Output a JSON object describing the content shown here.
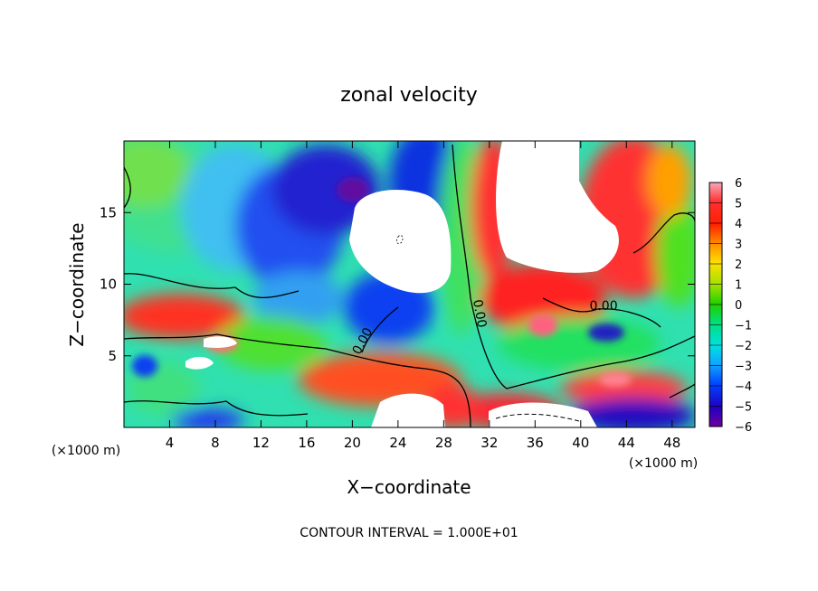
{
  "chart_data": {
    "type": "heatmap",
    "title": "zonal velocity",
    "xlabel": "X−coordinate",
    "ylabel": "Z−coordinate",
    "x_unit_label": "(×1000 m)",
    "x_unit_label_right": "(×1000 m)",
    "footer": "CONTOUR INTERVAL = 1.000E+01",
    "xlim": [
      0,
      50
    ],
    "ylim": [
      0,
      20
    ],
    "x_ticks": [
      4,
      8,
      12,
      16,
      20,
      24,
      28,
      32,
      36,
      40,
      44,
      48
    ],
    "y_ticks": [
      5,
      10,
      15
    ],
    "colorbar": {
      "min": -6,
      "max": 6,
      "labels": [
        6,
        5,
        4,
        3,
        2,
        1,
        0,
        -1,
        -2,
        -3,
        -4,
        -5,
        -6
      ],
      "labels_text": [
        "6",
        "5",
        "4",
        "3",
        "2",
        "1",
        "0",
        "−1",
        "−2",
        "−3",
        "−4",
        "−5",
        "−6"
      ]
    },
    "contour_labels": [
      {
        "text": "0.00",
        "x": 21.2,
        "y": 5.9
      },
      {
        "text": "0.00",
        "x": 30.8,
        "y": 7.9
      },
      {
        "text": "0.00",
        "x": 42.0,
        "y": 8.2
      }
    ]
  }
}
